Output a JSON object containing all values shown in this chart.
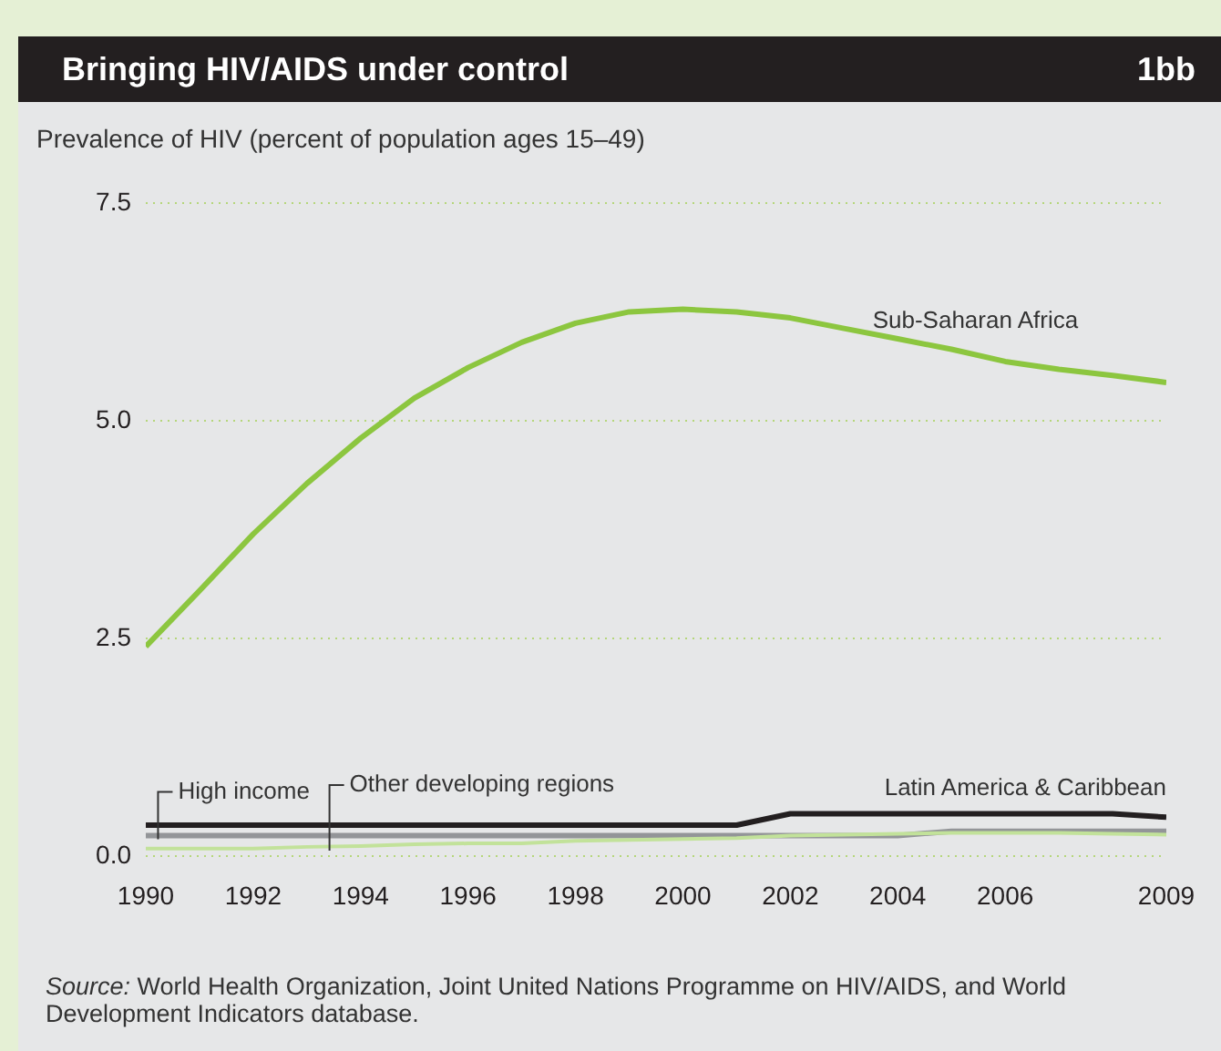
{
  "chart_data": {
    "type": "line",
    "title": "Bringing HIV/AIDS under control",
    "ylabel": "Prevalence of HIV (percent of population ages 15–49)",
    "annotations": [
      "1bb",
      "Source: World Health Organization, Joint United Nations Programme on HIV/AIDS, and World Development Indicators database."
    ],
    "x": [
      1990,
      1991,
      1992,
      1993,
      1994,
      1995,
      1996,
      1997,
      1998,
      1999,
      2000,
      2001,
      2002,
      2003,
      2004,
      2005,
      2006,
      2007,
      2008,
      2009
    ],
    "series": [
      {
        "name": "Sub-Saharan Africa",
        "color": "#8cc63f",
        "values": [
          2.41,
          3.05,
          3.7,
          4.28,
          4.8,
          5.26,
          5.61,
          5.9,
          6.12,
          6.25,
          6.28,
          6.25,
          6.18,
          6.06,
          5.94,
          5.82,
          5.68,
          5.59,
          5.52,
          5.44
        ]
      },
      {
        "name": "Latin America & Caribbean",
        "color": "#231f20",
        "values": [
          0.36,
          0.36,
          0.36,
          0.36,
          0.36,
          0.36,
          0.36,
          0.36,
          0.36,
          0.36,
          0.36,
          0.36,
          0.49,
          0.49,
          0.49,
          0.49,
          0.49,
          0.49,
          0.49,
          0.45
        ]
      },
      {
        "name": "High income",
        "color": "#939598",
        "values": [
          0.24,
          0.24,
          0.24,
          0.24,
          0.24,
          0.24,
          0.24,
          0.24,
          0.24,
          0.24,
          0.24,
          0.24,
          0.24,
          0.24,
          0.24,
          0.29,
          0.29,
          0.29,
          0.29,
          0.29
        ]
      },
      {
        "name": "Other developing regions",
        "color": "#c2e29a",
        "values": [
          0.09,
          0.09,
          0.09,
          0.11,
          0.12,
          0.14,
          0.15,
          0.15,
          0.18,
          0.19,
          0.2,
          0.21,
          0.24,
          0.25,
          0.26,
          0.27,
          0.27,
          0.27,
          0.26,
          0.25
        ]
      }
    ],
    "xlim": [
      1990,
      2009
    ],
    "xticks": [
      1990,
      1992,
      1994,
      1996,
      1998,
      2000,
      2002,
      2004,
      2006,
      2009
    ],
    "ylim": [
      0,
      7.5
    ],
    "yticks": [
      {
        "value": 0,
        "label": "0.0"
      },
      {
        "value": 2.5,
        "label": "2.5"
      },
      {
        "value": 5,
        "label": "5.0"
      },
      {
        "value": 7.5,
        "label": "7.5"
      }
    ],
    "grid": "y",
    "legend": false,
    "marker": "none",
    "line_style": "solid"
  }
}
